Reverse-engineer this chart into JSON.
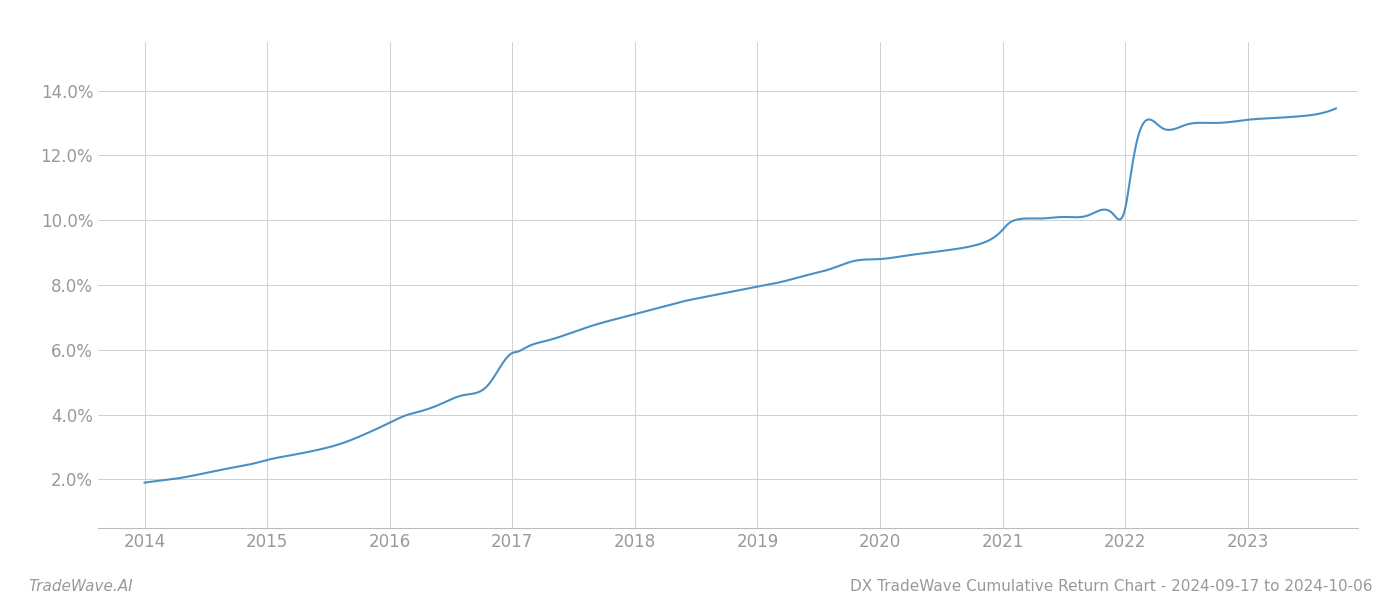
{
  "title": "DX TradeWave Cumulative Return Chart - 2024-09-17 to 2024-10-06",
  "watermark": "TradeWave.AI",
  "line_color": "#4a90c4",
  "background_color": "#ffffff",
  "grid_color": "#d0d0d0",
  "x_years": [
    2014,
    2015,
    2016,
    2017,
    2018,
    2019,
    2020,
    2021,
    2022,
    2023
  ],
  "x_values": [
    2014.0,
    2014.1,
    2014.3,
    2014.5,
    2014.7,
    2014.9,
    2015.0,
    2015.2,
    2015.4,
    2015.6,
    2015.8,
    2016.0,
    2016.15,
    2016.2,
    2016.4,
    2016.6,
    2016.8,
    2017.0,
    2017.05,
    2017.1,
    2017.3,
    2017.5,
    2017.7,
    2017.9,
    2018.0,
    2018.2,
    2018.4,
    2018.6,
    2018.8,
    2019.0,
    2019.2,
    2019.4,
    2019.6,
    2019.8,
    2020.0,
    2020.2,
    2020.4,
    2020.6,
    2020.8,
    2021.0,
    2021.05,
    2021.1,
    2021.3,
    2021.5,
    2021.7,
    2021.9,
    2022.0,
    2022.05,
    2022.1,
    2022.3,
    2022.5,
    2022.7,
    2022.9,
    2023.0,
    2023.2,
    2023.4,
    2023.6,
    2023.72
  ],
  "y_values": [
    1.9,
    1.95,
    2.05,
    2.2,
    2.35,
    2.5,
    2.6,
    2.75,
    2.9,
    3.1,
    3.4,
    3.75,
    4.0,
    4.05,
    4.3,
    4.6,
    4.9,
    5.9,
    5.95,
    6.05,
    6.3,
    6.55,
    6.8,
    7.0,
    7.1,
    7.3,
    7.5,
    7.65,
    7.8,
    7.95,
    8.1,
    8.3,
    8.5,
    8.75,
    8.8,
    8.9,
    9.0,
    9.1,
    9.25,
    9.7,
    9.9,
    10.0,
    10.05,
    10.1,
    10.15,
    10.2,
    10.35,
    11.5,
    12.5,
    12.85,
    12.95,
    13.0,
    13.05,
    13.1,
    13.15,
    13.2,
    13.3,
    13.45
  ],
  "ylim": [
    0.5,
    15.5
  ],
  "yticks": [
    2.0,
    4.0,
    6.0,
    8.0,
    10.0,
    12.0,
    14.0
  ],
  "xlim": [
    2013.62,
    2023.9
  ],
  "tick_fontsize": 12,
  "watermark_fontsize": 11,
  "title_fontsize": 11,
  "axis_label_color": "#999999",
  "bottom_text_color": "#999999"
}
